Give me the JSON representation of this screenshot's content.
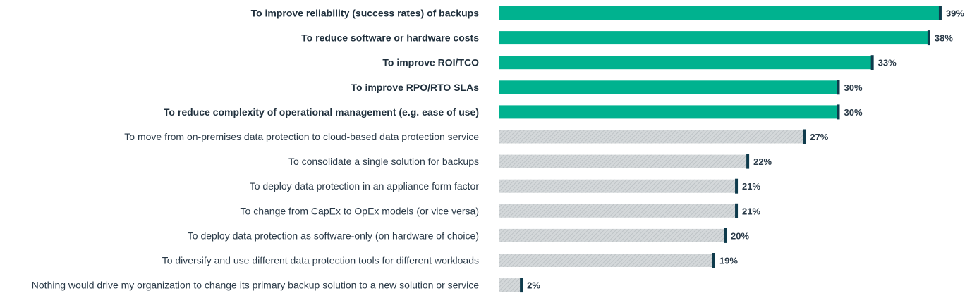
{
  "chart_data": {
    "type": "bar",
    "orientation": "horizontal",
    "categories": [
      "To improve reliability (success rates) of backups",
      "To reduce software or hardware costs",
      "To improve ROI/TCO",
      "To improve RPO/RTO SLAs",
      "To reduce complexity of operational management (e.g. ease of use)",
      "To move from on-premises data protection to cloud-based data protection service",
      "To consolidate a single solution for backups",
      "To deploy data protection in an appliance form factor",
      "To change from CapEx to OpEx models (or vice versa)",
      "To deploy data protection as software-only (on hardware of choice)",
      "To diversify and use different data protection tools for different workloads",
      "Nothing would drive my organization to change its primary backup solution to a new solution or service"
    ],
    "values": [
      39,
      38,
      33,
      30,
      30,
      27,
      22,
      21,
      21,
      20,
      19,
      2
    ],
    "value_labels": [
      "39%",
      "38%",
      "33%",
      "30%",
      "30%",
      "27%",
      "22%",
      "21%",
      "21%",
      "20%",
      "19%",
      "2%"
    ],
    "highlighted": [
      true,
      true,
      true,
      true,
      true,
      false,
      false,
      false,
      false,
      false,
      false,
      false
    ],
    "unit": "%",
    "xlim": [
      0,
      39
    ],
    "grid": false,
    "legend": "none",
    "title": "",
    "xlabel": "",
    "ylabel": "",
    "colors": {
      "highlight_bar": "#00b28f",
      "other_bar": "#d4d8da",
      "hatch": "#b8bec1",
      "end_marker": "#0f3b4c",
      "text": "#2a3a48"
    }
  }
}
